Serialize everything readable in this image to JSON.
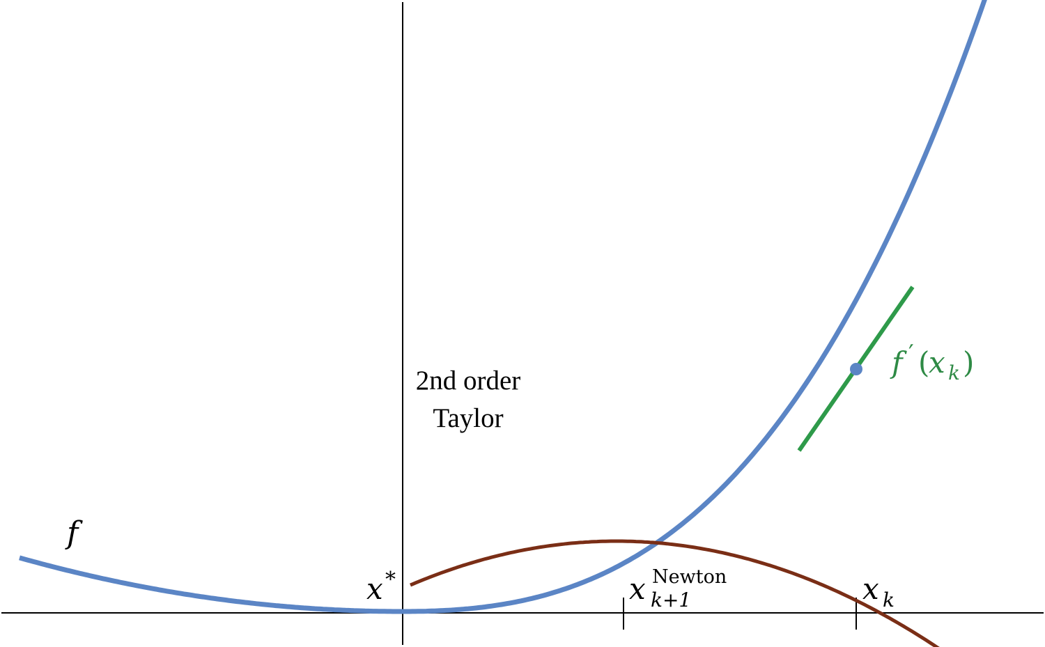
{
  "figure": {
    "taylor_label_line1": "2nd order",
    "taylor_label_line2": "Taylor",
    "f_label": "f",
    "derivative_label_fn": "f",
    "derivative_label_prime": "′",
    "derivative_label_open": "(",
    "derivative_label_var": "x",
    "derivative_label_sub": "k",
    "derivative_label_close": ")",
    "xstar_base": "x",
    "xstar_sup": "*",
    "newton_base": "x",
    "newton_sub": "k+1",
    "newton_sup": "Newton",
    "xk_base": "x",
    "xk_sub": "k"
  },
  "colors": {
    "f_curve": "#5b85c5",
    "taylor_curve": "#7a2e16",
    "tangent": "#2e9a4a",
    "point": "#5b85c5",
    "derivative_label": "#2e8a45",
    "axes": "#000000"
  }
}
